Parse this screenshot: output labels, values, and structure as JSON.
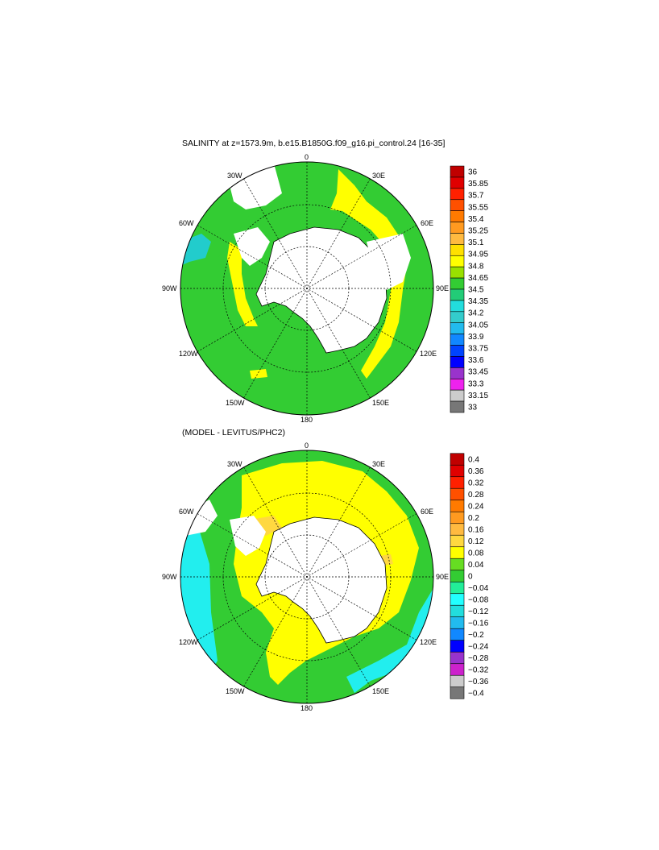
{
  "panel1": {
    "title": "SALINITY at z=1573.9m, b.e15.B1850G.f09_g16.pi_control.24 [16-35]",
    "lon_labels": {
      "top": "0",
      "tr": "30E",
      "right_up": "60E",
      "right": "90E",
      "right_down": "120E",
      "br": "150E",
      "bottom": "180",
      "bl": "150W",
      "left_down": "120W",
      "left": "90W",
      "left_up": "60W",
      "tl": "30W"
    },
    "colorbar": {
      "labels": [
        "36",
        "35.85",
        "35.7",
        "35.55",
        "35.4",
        "35.25",
        "35.1",
        "34.95",
        "34.8",
        "34.65",
        "34.5",
        "34.35",
        "34.2",
        "34.05",
        "33.9",
        "33.75",
        "33.6",
        "33.45",
        "33.3",
        "33.15",
        "33"
      ],
      "colors": [
        "#c00000",
        "#e00000",
        "#ff2000",
        "#ff5000",
        "#ff7a00",
        "#ff9a20",
        "#ffba40",
        "#ffe000",
        "#ffff00",
        "#99e000",
        "#33cc33",
        "#22cc77",
        "#22dddd",
        "#33cccc",
        "#22bbee",
        "#1188ff",
        "#0044ff",
        "#0000ff",
        "#9933cc",
        "#ee22ee",
        "#cccccc",
        "#777777"
      ]
    }
  },
  "panel2": {
    "title": "(MODEL - LEVITUS/PHC2)",
    "lon_labels": {
      "top": "0",
      "tr": "30E",
      "right_up": "60E",
      "right": "90E",
      "right_down": "120E",
      "br": "150E",
      "bottom": "180",
      "bl": "150W",
      "left_down": "120W",
      "left": "90W",
      "left_up": "60W",
      "tl": "30W"
    },
    "colorbar": {
      "labels": [
        "0.4",
        "0.36",
        "0.32",
        "0.28",
        "0.24",
        "0.2",
        "0.16",
        "0.12",
        "0.08",
        "0.04",
        "0",
        "−0.04",
        "−0.08",
        "−0.12",
        "−0.16",
        "−0.2",
        "−0.24",
        "−0.28",
        "−0.32",
        "−0.36",
        "−0.4"
      ],
      "colors": [
        "#c00000",
        "#e00000",
        "#ff2000",
        "#ff5000",
        "#ff7a00",
        "#ff9a20",
        "#ffba40",
        "#ffd840",
        "#ffff00",
        "#66dd22",
        "#33cc33",
        "#22ee99",
        "#22ffff",
        "#22dddd",
        "#22bbee",
        "#1188ff",
        "#0000ff",
        "#9933cc",
        "#cc22cc",
        "#cccccc",
        "#777777"
      ]
    }
  },
  "colors": {
    "ocean_main_1": "#33cc33",
    "zone_1": "#ffff00",
    "land": "#ffffff",
    "ocean_main_2": "#ffff00",
    "zone_2": "#33cc33",
    "cyan": "#22eeee"
  }
}
